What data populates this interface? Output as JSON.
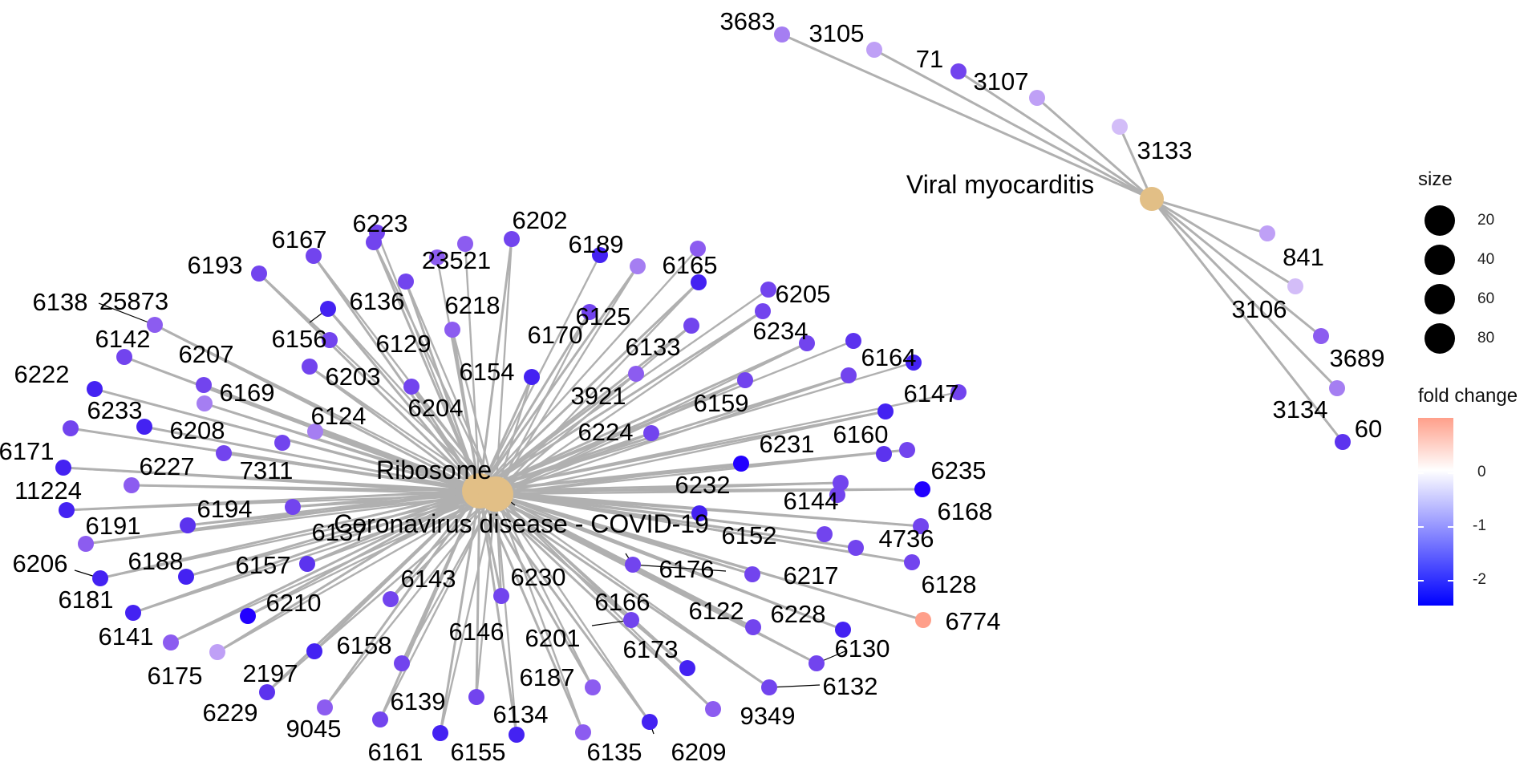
{
  "colors": {
    "edge": "#b0b0b0",
    "category_node": "#e2bf86",
    "fold_change_gradient": [
      "#0000ff",
      "#ffffff",
      "#ff9f8a"
    ],
    "label": "#000000"
  },
  "network": {
    "category_nodes": [
      {
        "label": "Ribosome"
      },
      {
        "label": "Coronavirus disease - COVID-19"
      },
      {
        "label": "Viral myocarditis"
      }
    ],
    "gene_labels": [
      "6138",
      "25873",
      "6142",
      "6207",
      "6222",
      "6169",
      "6233",
      "6208",
      "6171",
      "6227",
      "11224",
      "6191",
      "6194",
      "6206",
      "6188",
      "6181",
      "6157",
      "6141",
      "6210",
      "6175",
      "2197",
      "6229",
      "6158",
      "9045",
      "6139",
      "6161",
      "6155",
      "6134",
      "6135",
      "6209",
      "6187",
      "6146",
      "6201",
      "6173",
      "6230",
      "6143",
      "6166",
      "6176",
      "6217",
      "6128",
      "6122",
      "6228",
      "6774",
      "6130",
      "6132",
      "9349",
      "6152",
      "4736",
      "6168",
      "6144",
      "6235",
      "6232",
      "6231",
      "6160",
      "6147",
      "6164",
      "6224",
      "6159",
      "3921",
      "6133",
      "6234",
      "6205",
      "6170",
      "6125",
      "6165",
      "6189",
      "6202",
      "6154",
      "6218",
      "23521",
      "6223",
      "6129",
      "6204",
      "6136",
      "6167",
      "6193",
      "6156",
      "6203",
      "6124",
      "7311",
      "6137",
      "3683",
      "3105",
      "71",
      "3107",
      "3133",
      "841",
      "3106",
      "3689",
      "3134",
      "60"
    ]
  },
  "legend": {
    "size_title": "size",
    "size_entries": [
      "20",
      "40",
      "60",
      "80"
    ],
    "color_title": "fold change",
    "color_ticks": [
      "0",
      "-1",
      "-2"
    ]
  }
}
